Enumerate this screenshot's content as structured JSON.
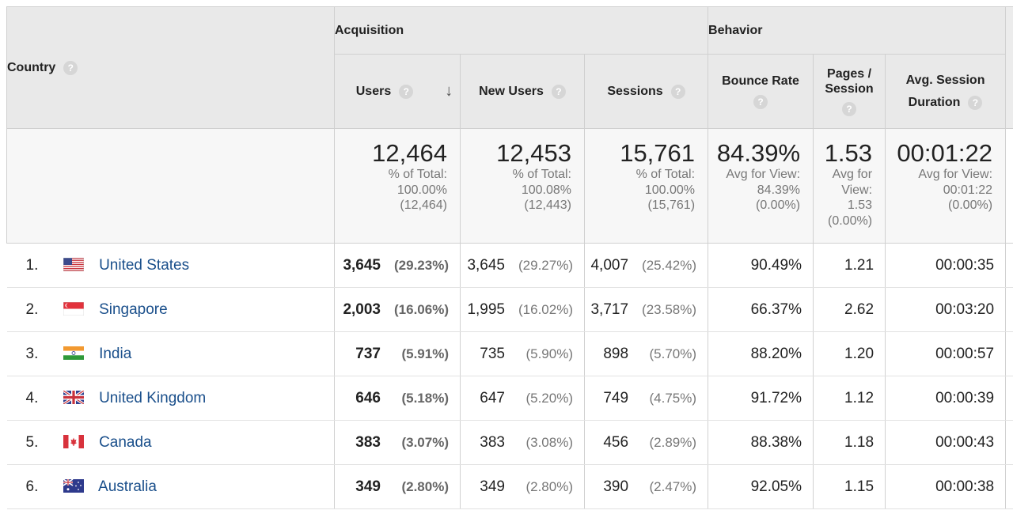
{
  "header": {
    "country": "Country",
    "acquisition": "Acquisition",
    "behavior": "Behavior",
    "help_glyph": "?",
    "sort_glyph": "↓",
    "metrics": {
      "users": "Users",
      "new_users": "New Users",
      "sessions": "Sessions",
      "bounce_rate": "Bounce Rate",
      "pages_session_1": "Pages /",
      "pages_session_2": "Session",
      "avg_duration_1": "Avg. Session",
      "avg_duration_2": "Duration"
    }
  },
  "totals": {
    "users": {
      "value": "12,464",
      "l1": "% of Total:",
      "l2": "100.00%",
      "l3": "(12,464)"
    },
    "new_users": {
      "value": "12,453",
      "l1": "% of Total:",
      "l2": "100.08%",
      "l3": "(12,443)"
    },
    "sessions": {
      "value": "15,761",
      "l1": "% of Total:",
      "l2": "100.00%",
      "l3": "(15,761)"
    },
    "bounce_rate": {
      "value": "84.39%",
      "l1": "Avg for View:",
      "l2": "84.39%",
      "l3": "(0.00%)"
    },
    "pages_session": {
      "value": "1.53",
      "l1": "Avg for",
      "l2": "View:",
      "l3": "1.53",
      "l4": "(0.00%)"
    },
    "avg_duration": {
      "value": "00:01:22",
      "l1": "Avg for View:",
      "l2": "00:01:22",
      "l3": "(0.00%)"
    }
  },
  "rows": [
    {
      "rank": "1.",
      "flag": "us",
      "country": "United States",
      "users": "3,645",
      "users_pct": "(29.23%)",
      "new_users": "3,645",
      "new_users_pct": "(29.27%)",
      "sessions": "4,007",
      "sessions_pct": "(25.42%)",
      "bounce_rate": "90.49%",
      "pages_session": "1.21",
      "avg_duration": "00:00:35"
    },
    {
      "rank": "2.",
      "flag": "sg",
      "country": "Singapore",
      "users": "2,003",
      "users_pct": "(16.06%)",
      "new_users": "1,995",
      "new_users_pct": "(16.02%)",
      "sessions": "3,717",
      "sessions_pct": "(23.58%)",
      "bounce_rate": "66.37%",
      "pages_session": "2.62",
      "avg_duration": "00:03:20"
    },
    {
      "rank": "3.",
      "flag": "in",
      "country": "India",
      "users": "737",
      "users_pct": "(5.91%)",
      "new_users": "735",
      "new_users_pct": "(5.90%)",
      "sessions": "898",
      "sessions_pct": "(5.70%)",
      "bounce_rate": "88.20%",
      "pages_session": "1.20",
      "avg_duration": "00:00:57"
    },
    {
      "rank": "4.",
      "flag": "gb",
      "country": "United Kingdom",
      "users": "646",
      "users_pct": "(5.18%)",
      "new_users": "647",
      "new_users_pct": "(5.20%)",
      "sessions": "749",
      "sessions_pct": "(4.75%)",
      "bounce_rate": "91.72%",
      "pages_session": "1.12",
      "avg_duration": "00:00:39"
    },
    {
      "rank": "5.",
      "flag": "ca",
      "country": "Canada",
      "users": "383",
      "users_pct": "(3.07%)",
      "new_users": "383",
      "new_users_pct": "(3.08%)",
      "sessions": "456",
      "sessions_pct": "(2.89%)",
      "bounce_rate": "88.38%",
      "pages_session": "1.18",
      "avg_duration": "00:00:43"
    },
    {
      "rank": "6.",
      "flag": "au",
      "country": "Australia",
      "users": "349",
      "users_pct": "(2.80%)",
      "new_users": "349",
      "new_users_pct": "(2.80%)",
      "sessions": "390",
      "sessions_pct": "(2.47%)",
      "bounce_rate": "92.05%",
      "pages_session": "1.15",
      "avg_duration": "00:00:38"
    }
  ],
  "colors": {
    "header_bg": "#e9e9e9",
    "totals_bg": "#f7f7f7",
    "link": "#1a4f8b",
    "muted": "#777777"
  }
}
